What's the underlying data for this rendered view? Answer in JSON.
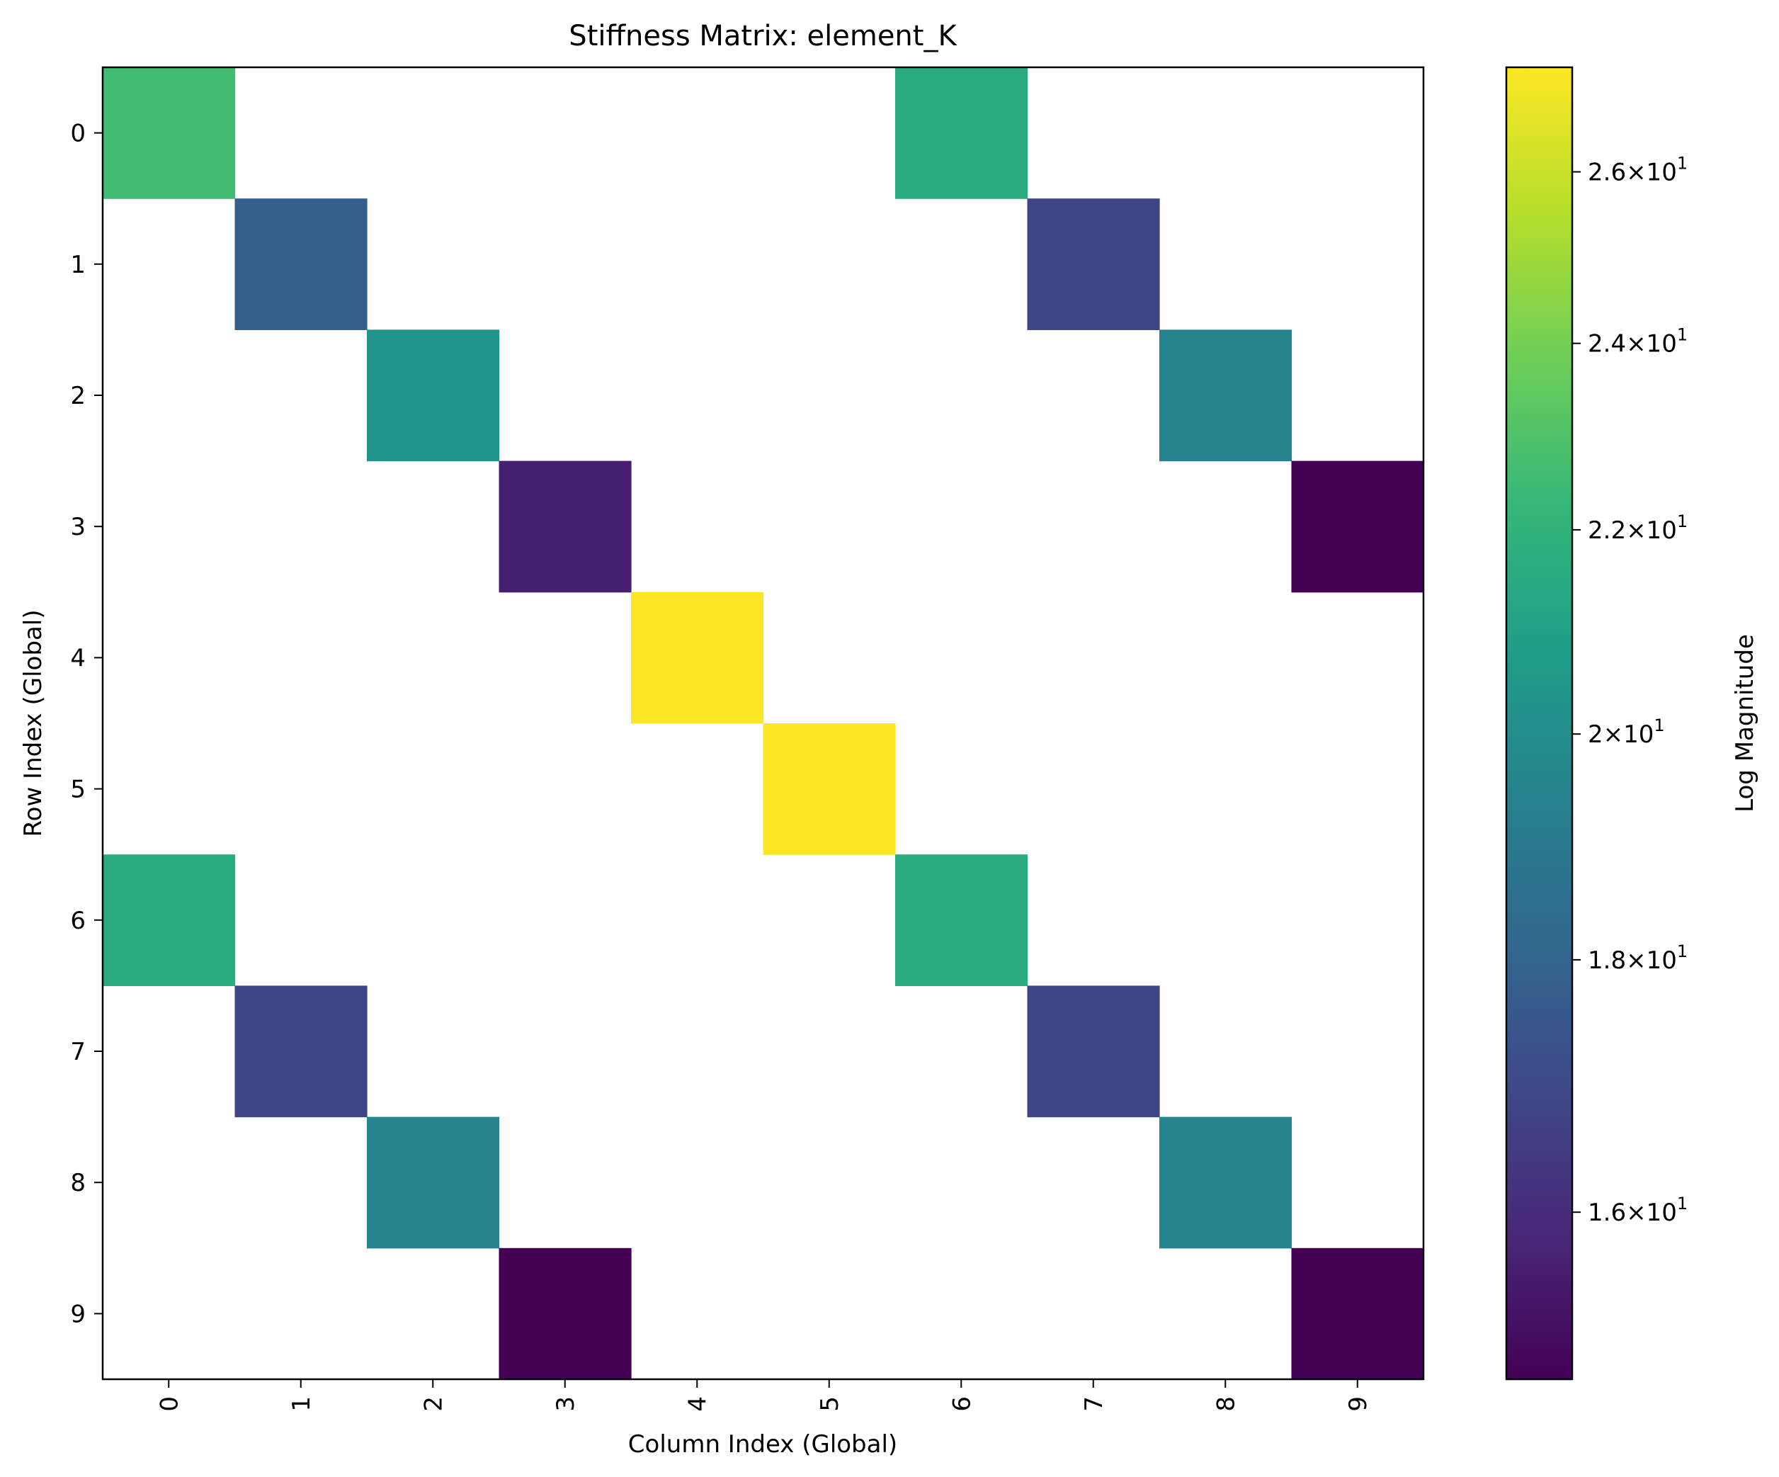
{
  "chart_data": {
    "type": "heatmap",
    "title": "Stiffness Matrix: element_K",
    "xlabel": "Column Index (Global)",
    "ylabel": "Row Index (Global)",
    "x_tick_labels": [
      "0",
      "1",
      "2",
      "3",
      "4",
      "5",
      "6",
      "7",
      "8",
      "9"
    ],
    "y_tick_labels": [
      "0",
      "1",
      "2",
      "3",
      "4",
      "5",
      "6",
      "7",
      "8",
      "9"
    ],
    "colorbar": {
      "label": "Log Magnitude",
      "scale": "log",
      "colormap": "viridis",
      "range": [
        14.8,
        27.3
      ],
      "ticks": [
        {
          "value": 16,
          "mantissa": "1.6",
          "exp": "1"
        },
        {
          "value": 18,
          "mantissa": "1.8",
          "exp": "1"
        },
        {
          "value": 20,
          "mantissa": "2",
          "exp": "1"
        },
        {
          "value": 22,
          "mantissa": "2.2",
          "exp": "1"
        },
        {
          "value": 24,
          "mantissa": "2.4",
          "exp": "1"
        },
        {
          "value": 26,
          "mantissa": "2.6",
          "exp": "1"
        }
      ]
    },
    "cells": [
      {
        "row": 0,
        "col": 0,
        "value": 22.6
      },
      {
        "row": 0,
        "col": 6,
        "value": 21.6
      },
      {
        "row": 1,
        "col": 1,
        "value": 17.8
      },
      {
        "row": 1,
        "col": 7,
        "value": 16.8
      },
      {
        "row": 2,
        "col": 2,
        "value": 20.3
      },
      {
        "row": 2,
        "col": 8,
        "value": 19.5
      },
      {
        "row": 3,
        "col": 3,
        "value": 15.6
      },
      {
        "row": 3,
        "col": 9,
        "value": 14.8
      },
      {
        "row": 4,
        "col": 4,
        "value": 27.3
      },
      {
        "row": 5,
        "col": 5,
        "value": 27.3
      },
      {
        "row": 6,
        "col": 0,
        "value": 21.6
      },
      {
        "row": 6,
        "col": 6,
        "value": 21.6
      },
      {
        "row": 7,
        "col": 1,
        "value": 16.8
      },
      {
        "row": 7,
        "col": 7,
        "value": 16.8
      },
      {
        "row": 8,
        "col": 2,
        "value": 19.5
      },
      {
        "row": 8,
        "col": 8,
        "value": 19.5
      },
      {
        "row": 9,
        "col": 3,
        "value": 14.8
      },
      {
        "row": 9,
        "col": 9,
        "value": 14.8
      }
    ]
  }
}
